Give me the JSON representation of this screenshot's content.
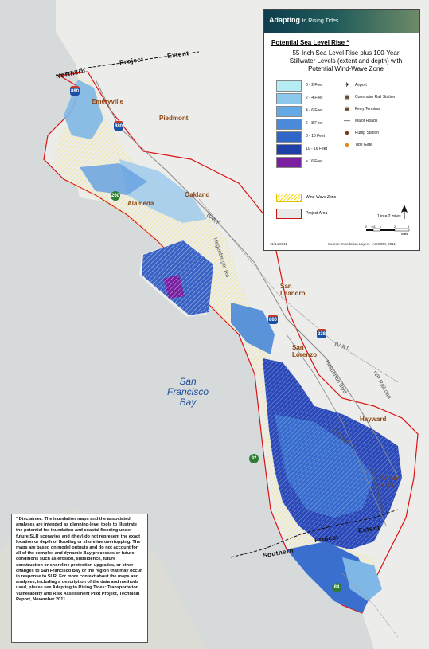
{
  "map": {
    "extent_label_top_1": "Northern",
    "extent_label_top_2": "Project",
    "extent_label_top_3": "Extent",
    "extent_label_bottom_1": "Southern",
    "extent_label_bottom_2": "Project",
    "extent_label_bottom_3": "Extent",
    "bay_label": "San\nFrancisco\nBay",
    "places": {
      "emeryville": "Emeryville",
      "piedmont": "Piedmont",
      "oakland": "Oakland",
      "alameda": "Alameda",
      "san_leandro": "San\nLeandro",
      "san_lorenzo": "San\nLorenzo",
      "hayward": "Hayward",
      "union_city": "Union\nCity"
    },
    "roads": {
      "hegenberger": "Hegenberger Rd",
      "hesperian": "Hesperian Blvd",
      "bart_1": "BART",
      "bart_2": "BART",
      "wp_railroad": "WP Railroad",
      "alvarado_niles": "Alvarado Niles Rd",
      "a_street": "A Street"
    },
    "shields": {
      "i880_a": "880",
      "i880_b": "880",
      "i880_c": "880",
      "i238": "238",
      "sr260": "260",
      "sr92": "92",
      "sr84": "84"
    },
    "colors": {
      "water": "#d9dcdc",
      "land": "#ececec",
      "inundation_dark": "#2b48b8",
      "inundation_mid": "#3a6fd0",
      "inundation_light": "#7fb8e6",
      "wind_wave": "#f2e36a",
      "project_boundary": "#dd1111"
    }
  },
  "legend": {
    "banner_title": "Adapting",
    "banner_title_rest": "to Rising Tides",
    "title": "Potential Sea Level Rise *",
    "subtitle": "55-Inch Sea Level Rise plus 100-Year Stillwater Levels (extent and depth) with Potential Wind-Wave Zone",
    "depth_classes": [
      {
        "label": "0 - 2 Feet",
        "color": "#b6ecf4"
      },
      {
        "label": "2 - 4 Feet",
        "color": "#8cc8ee"
      },
      {
        "label": "4 - 6 Feet",
        "color": "#64a9e6"
      },
      {
        "label": "6 - 8 Feet",
        "color": "#4a8ad8"
      },
      {
        "label": "8 - 10 Feet",
        "color": "#2f66c8"
      },
      {
        "label": "10 - 16 Feet",
        "color": "#1f3fa8"
      },
      {
        "label": "> 16 Feet",
        "color": "#7a1fa0"
      }
    ],
    "symbols": [
      {
        "label": "Airport",
        "icon": "airport-icon",
        "glyph": "✈"
      },
      {
        "label": "Commuter Rail Station",
        "icon": "rail-station-icon",
        "glyph": "▣"
      },
      {
        "label": "Ferry Terminal",
        "icon": "ferry-terminal-icon",
        "glyph": "▣"
      },
      {
        "label": "Major Roads",
        "icon": "major-road-icon",
        "glyph": "—"
      },
      {
        "label": "Pump Station",
        "icon": "pump-station-icon",
        "glyph": "◆"
      },
      {
        "label": "Tide Gate",
        "icon": "tide-gate-icon",
        "glyph": "◆"
      }
    ],
    "wind_wave_label": "Wind-Wave Zone",
    "project_area_label": "Project Area",
    "scale_label": "1 in = 2 miles",
    "scale_ticks": [
      "0",
      "0.5",
      "1",
      "2",
      "3"
    ],
    "scale_unit": "Miles",
    "date": "11/14/2011",
    "source": "Source: Inundation Layers - AECOM, 2011"
  },
  "disclaimer": "* Disclaimer: The inundation maps and the associated analyses are intended as planning-level tools to illustrate the potential for inundation and coastal flooding under future SLR scenarios and (they) do not represent the exact location or depth of flooding or shoreline overtopping. The maps are based on model outputs and do not account for all of the complex and dynamic Bay processes or future conditions such as erosion, subsidence, future construction or shoreline protection upgrades, or other changes to San Francisco Bay or the region that may occur in response to SLR. For more context about the maps and analyses, including a description of the data and methods used, please see Adapting to Rising Tides: Transportation Vulnerability and Risk Assessment Pilot Project, Technical Report, November 2011."
}
